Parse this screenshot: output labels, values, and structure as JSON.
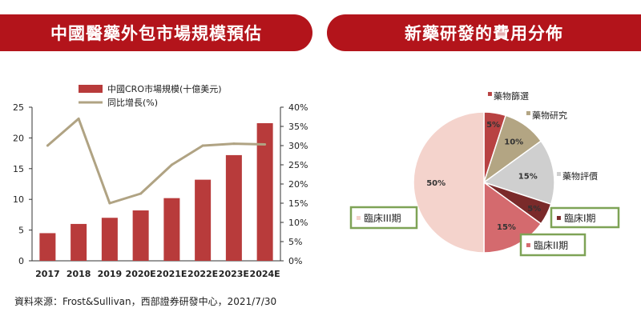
{
  "header": {
    "left_title": "中國醫藥外包市場規模預估",
    "right_title": "新藥研發的費用分佈"
  },
  "source_note": "資料來源：Frost&Sullivan，西部證券研發中心，2021/7/30",
  "colors": {
    "banner": "#b3141b",
    "bar": "#b83b3b",
    "line": "#b0a383"
  },
  "chart_data": [
    {
      "type": "bar",
      "categories": [
        "2017",
        "2018",
        "2019",
        "2020E",
        "2021E",
        "2022E",
        "2023E",
        "2024E"
      ],
      "series": [
        {
          "name": "中國CRO市場規模(十億美元)",
          "type": "bar",
          "axis": "left",
          "values": [
            4.5,
            6.0,
            7.0,
            8.2,
            10.2,
            13.2,
            17.2,
            22.4
          ]
        },
        {
          "name": "同比增長(%)",
          "type": "line",
          "axis": "right",
          "values": [
            30,
            37,
            15,
            17.5,
            25,
            30,
            30.5,
            30.3
          ]
        }
      ],
      "ylim": [
        0,
        25
      ],
      "yticks": [
        "0",
        "5",
        "10",
        "15",
        "20",
        "25"
      ],
      "y2lim": [
        0,
        40
      ],
      "y2ticks": [
        "0%",
        "5%",
        "10%",
        "15%",
        "20%",
        "25%",
        "30%",
        "35%",
        "40%"
      ],
      "legend": "top"
    },
    {
      "type": "pie",
      "slices": [
        {
          "label": "藥物篩選",
          "value": 5,
          "pct_label": "5%",
          "color": "#b84242"
        },
        {
          "label": "藥物研究",
          "value": 10,
          "pct_label": "10%",
          "color": "#b3a583"
        },
        {
          "label": "藥物評價",
          "value": 15,
          "pct_label": "15%",
          "color": "#cfcfcf"
        },
        {
          "label": "臨床I期",
          "value": 5,
          "pct_label": "5%",
          "color": "#7a2a2a",
          "highlighted": true
        },
        {
          "label": "臨床II期",
          "value": 15,
          "pct_label": "15%",
          "color": "#d46a6e",
          "highlighted": true
        },
        {
          "label": "臨床III期",
          "value": 50,
          "pct_label": "50%",
          "color": "#f4d3cc",
          "highlighted": true
        }
      ]
    }
  ]
}
